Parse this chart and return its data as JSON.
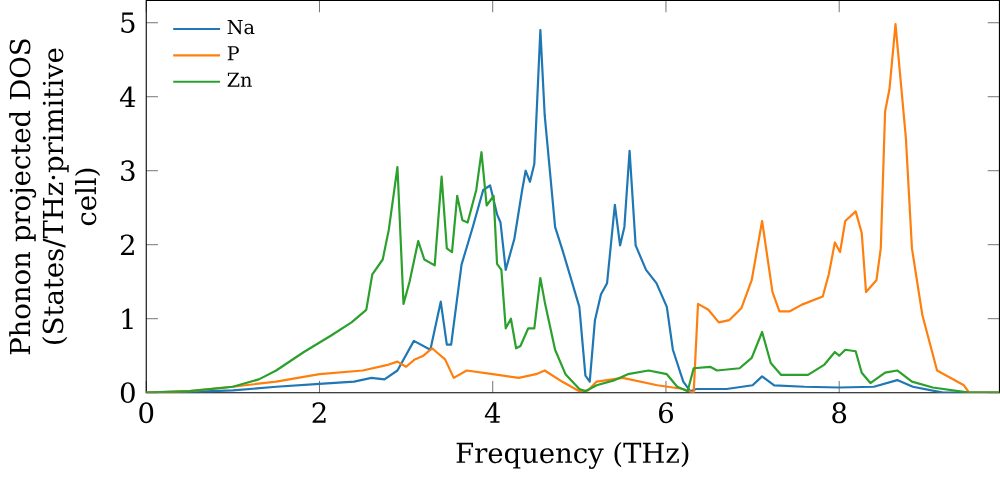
{
  "chart_data": {
    "type": "line",
    "xlabel": "Frequency (THz)",
    "ylabel": "Phonon projected DOS (States/THz·primitive cell)",
    "xlim": [
      0,
      9.85
    ],
    "ylim": [
      0,
      5.3
    ],
    "xticks": [
      0,
      2,
      4,
      6,
      8
    ],
    "yticks": [
      0,
      1,
      2,
      3,
      4,
      5
    ],
    "legend": "top left",
    "series": [
      {
        "name": "Na",
        "color": "#1f77b4",
        "x": [
          0,
          0.5,
          1,
          1.5,
          2,
          2.4,
          2.6,
          2.75,
          2.9,
          3.09,
          3.28,
          3.4,
          3.47,
          3.52,
          3.64,
          3.77,
          3.89,
          3.97,
          4.05,
          4.09,
          4.15,
          4.25,
          4.34,
          4.38,
          4.43,
          4.48,
          4.55,
          4.6,
          4.72,
          4.81,
          5.0,
          5.07,
          5.12,
          5.18,
          5.25,
          5.32,
          5.41,
          5.47,
          5.52,
          5.58,
          5.65,
          5.77,
          5.89,
          6.01,
          6.08,
          6.2,
          6.28,
          6.35,
          6.7,
          7.0,
          7.11,
          7.25,
          7.6,
          8.0,
          8.4,
          8.67,
          8.85,
          9.2,
          9.85
        ],
        "values": [
          0,
          0.01,
          0.03,
          0.08,
          0.12,
          0.15,
          0.2,
          0.18,
          0.3,
          0.7,
          0.58,
          1.23,
          0.65,
          0.65,
          1.73,
          2.24,
          2.74,
          2.8,
          2.41,
          2.3,
          1.66,
          2.08,
          2.74,
          3.0,
          2.85,
          3.09,
          4.9,
          3.75,
          2.24,
          1.91,
          1.16,
          0.23,
          0.15,
          0.98,
          1.33,
          1.48,
          2.54,
          1.99,
          2.24,
          3.27,
          1.99,
          1.66,
          1.48,
          1.16,
          0.58,
          0.15,
          0.02,
          0.05,
          0.05,
          0.1,
          0.22,
          0.1,
          0.08,
          0.07,
          0.08,
          0.17,
          0.08,
          0.0,
          0.0
        ]
      },
      {
        "name": "P",
        "color": "#ff7f0e",
        "x": [
          0,
          0.5,
          1,
          1.5,
          2,
          2.5,
          2.8,
          2.9,
          3.0,
          3.1,
          3.2,
          3.3,
          3.35,
          3.45,
          3.55,
          3.7,
          4.0,
          4.3,
          4.5,
          4.6,
          4.8,
          5.0,
          5.1,
          5.2,
          5.5,
          5.9,
          6.2,
          6.32,
          6.37,
          6.49,
          6.61,
          6.73,
          6.87,
          6.99,
          7.11,
          7.23,
          7.31,
          7.43,
          7.57,
          7.81,
          7.88,
          7.95,
          8.01,
          8.07,
          8.19,
          8.26,
          8.31,
          8.43,
          8.48,
          8.53,
          8.58,
          8.65,
          8.77,
          8.84,
          8.96,
          9.13,
          9.44,
          9.5,
          9.85
        ],
        "values": [
          0,
          0.02,
          0.08,
          0.15,
          0.25,
          0.3,
          0.38,
          0.42,
          0.35,
          0.45,
          0.5,
          0.6,
          0.55,
          0.45,
          0.2,
          0.3,
          0.25,
          0.2,
          0.25,
          0.3,
          0.15,
          0.02,
          0.03,
          0.15,
          0.2,
          0.1,
          0.05,
          0.0,
          1.2,
          1.12,
          0.95,
          0.98,
          1.14,
          1.52,
          2.32,
          1.36,
          1.1,
          1.1,
          1.19,
          1.3,
          1.6,
          2.03,
          1.9,
          2.32,
          2.45,
          2.16,
          1.36,
          1.52,
          1.95,
          3.8,
          4.1,
          4.98,
          3.44,
          1.95,
          1.05,
          0.3,
          0.1,
          0.0,
          0.0
        ]
      },
      {
        "name": "Zn",
        "color": "#2ca02c",
        "x": [
          0,
          0.5,
          1,
          1.3,
          1.5,
          1.82,
          2.13,
          2.37,
          2.54,
          2.61,
          2.73,
          2.8,
          2.9,
          2.97,
          3.04,
          3.14,
          3.21,
          3.33,
          3.41,
          3.47,
          3.53,
          3.59,
          3.65,
          3.71,
          3.81,
          3.87,
          3.93,
          4.01,
          4.05,
          4.1,
          4.15,
          4.21,
          4.27,
          4.32,
          4.41,
          4.48,
          4.55,
          4.6,
          4.72,
          4.84,
          5.0,
          5.07,
          5.2,
          5.41,
          5.56,
          5.8,
          6.01,
          6.13,
          6.25,
          6.32,
          6.51,
          6.59,
          6.85,
          6.99,
          7.11,
          7.21,
          7.33,
          7.64,
          7.83,
          7.95,
          8.0,
          8.07,
          8.19,
          8.26,
          8.36,
          8.53,
          8.67,
          8.84,
          9.08,
          9.5,
          9.85
        ],
        "values": [
          0,
          0.02,
          0.08,
          0.18,
          0.3,
          0.55,
          0.77,
          0.95,
          1.12,
          1.6,
          1.8,
          2.2,
          3.05,
          1.2,
          1.5,
          2.05,
          1.8,
          1.72,
          2.92,
          1.95,
          1.9,
          2.66,
          2.33,
          2.3,
          2.74,
          3.25,
          2.53,
          2.66,
          1.74,
          1.66,
          0.87,
          1.0,
          0.6,
          0.63,
          0.87,
          0.87,
          1.55,
          1.23,
          0.58,
          0.25,
          0.05,
          0.02,
          0.1,
          0.17,
          0.25,
          0.3,
          0.25,
          0.08,
          0.02,
          0.33,
          0.35,
          0.3,
          0.33,
          0.47,
          0.82,
          0.4,
          0.24,
          0.24,
          0.38,
          0.55,
          0.5,
          0.58,
          0.56,
          0.27,
          0.13,
          0.27,
          0.3,
          0.15,
          0.07,
          0.0,
          0.0
        ]
      }
    ]
  }
}
